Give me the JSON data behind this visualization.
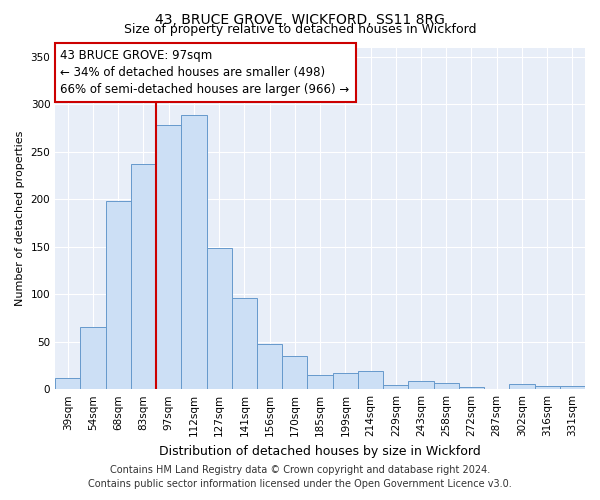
{
  "title": "43, BRUCE GROVE, WICKFORD, SS11 8RG",
  "subtitle": "Size of property relative to detached houses in Wickford",
  "xlabel": "Distribution of detached houses by size in Wickford",
  "ylabel": "Number of detached properties",
  "bar_labels": [
    "39sqm",
    "54sqm",
    "68sqm",
    "83sqm",
    "97sqm",
    "112sqm",
    "127sqm",
    "141sqm",
    "156sqm",
    "170sqm",
    "185sqm",
    "199sqm",
    "214sqm",
    "229sqm",
    "243sqm",
    "258sqm",
    "272sqm",
    "287sqm",
    "302sqm",
    "316sqm",
    "331sqm"
  ],
  "bar_heights": [
    12,
    65,
    198,
    237,
    278,
    289,
    149,
    96,
    48,
    35,
    15,
    17,
    19,
    4,
    9,
    7,
    2,
    0,
    5,
    3,
    3
  ],
  "bar_color": "#ccdff5",
  "bar_edge_color": "#6699cc",
  "ylim": [
    0,
    360
  ],
  "yticks": [
    0,
    50,
    100,
    150,
    200,
    250,
    300,
    350
  ],
  "vline_x_index": 4,
  "vline_color": "#cc0000",
  "annotation_title": "43 BRUCE GROVE: 97sqm",
  "annotation_line1": "← 34% of detached houses are smaller (498)",
  "annotation_line2": "66% of semi-detached houses are larger (966) →",
  "annotation_box_facecolor": "#ffffff",
  "annotation_box_edge_color": "#cc0000",
  "footer1": "Contains HM Land Registry data © Crown copyright and database right 2024.",
  "footer2": "Contains public sector information licensed under the Open Government Licence v3.0.",
  "fig_background_color": "#ffffff",
  "plot_background_color": "#e8eef8",
  "grid_color": "#ffffff",
  "title_fontsize": 10,
  "subtitle_fontsize": 9,
  "xlabel_fontsize": 9,
  "ylabel_fontsize": 8,
  "tick_fontsize": 7.5,
  "footer_fontsize": 7,
  "annotation_fontsize": 8.5
}
